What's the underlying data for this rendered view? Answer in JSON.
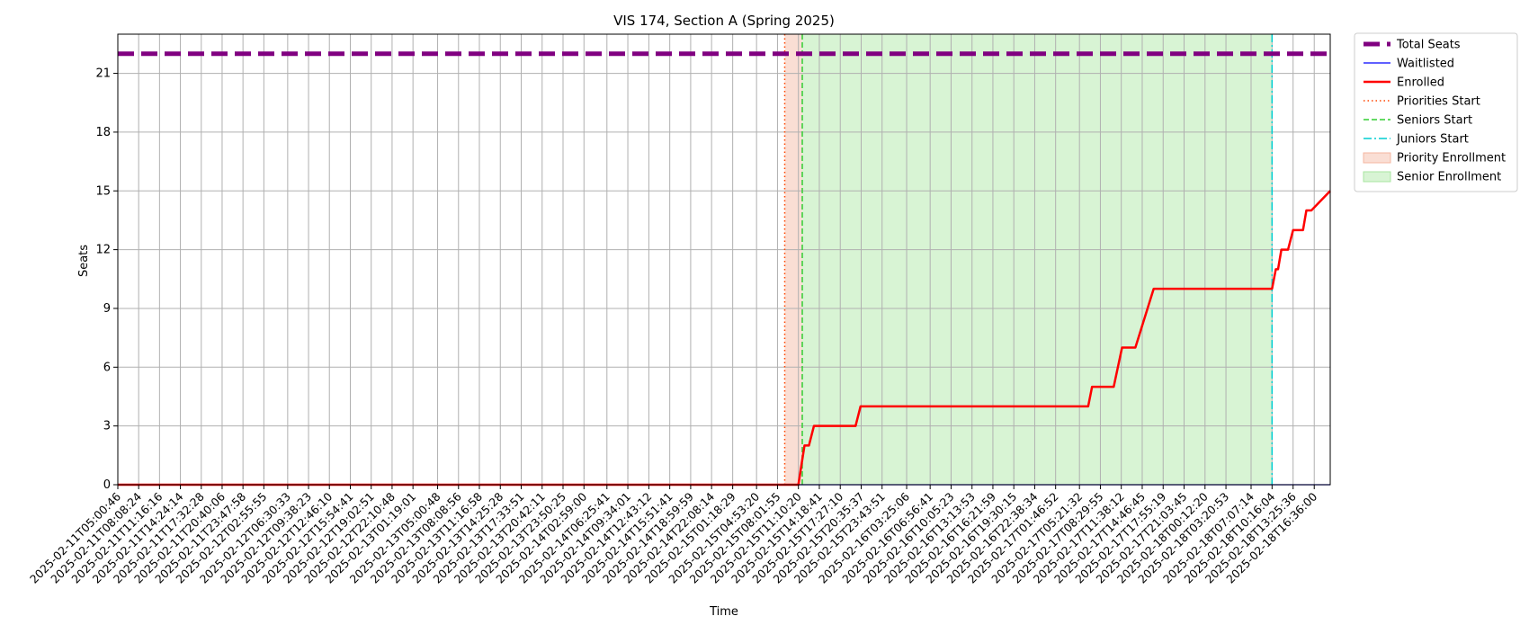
{
  "chart_data": {
    "type": "line",
    "title": "VIS 174, Section A (Spring 2025)",
    "xlabel": "Time",
    "ylabel": "Seats",
    "ylim": [
      0,
      23
    ],
    "yticks": [
      0,
      3,
      6,
      9,
      12,
      15,
      18,
      21
    ],
    "grid": true,
    "legend_position": "outside top-right",
    "x_ticks": [
      "2025-02-11T05:00:46",
      "2025-02-11T08:08:24",
      "2025-02-11T11:16:16",
      "2025-02-11T14:24:14",
      "2025-02-11T17:32:28",
      "2025-02-11T20:40:06",
      "2025-02-11T23:47:58",
      "2025-02-12T02:55:55",
      "2025-02-12T06:30:33",
      "2025-02-12T09:38:23",
      "2025-02-12T12:46:10",
      "2025-02-12T15:54:41",
      "2025-02-12T19:02:51",
      "2025-02-12T22:10:48",
      "2025-02-13T01:19:01",
      "2025-02-13T05:00:48",
      "2025-02-13T08:08:56",
      "2025-02-13T11:16:58",
      "2025-02-13T14:25:28",
      "2025-02-13T17:33:51",
      "2025-02-13T20:42:11",
      "2025-02-13T23:50:25",
      "2025-02-14T02:59:00",
      "2025-02-14T06:25:41",
      "2025-02-14T09:34:01",
      "2025-02-14T12:43:12",
      "2025-02-14T15:51:41",
      "2025-02-14T18:59:59",
      "2025-02-14T22:08:14",
      "2025-02-15T01:18:29",
      "2025-02-15T04:53:20",
      "2025-02-15T08:01:55",
      "2025-02-15T11:10:20",
      "2025-02-15T14:18:41",
      "2025-02-15T17:27:10",
      "2025-02-15T20:35:37",
      "2025-02-15T23:43:51",
      "2025-02-16T03:25:06",
      "2025-02-16T06:56:41",
      "2025-02-16T10:05:23",
      "2025-02-16T13:13:53",
      "2025-02-16T16:21:59",
      "2025-02-16T19:30:15",
      "2025-02-16T22:38:34",
      "2025-02-17T01:46:52",
      "2025-02-17T05:21:32",
      "2025-02-17T08:29:55",
      "2025-02-17T11:38:12",
      "2025-02-17T14:46:45",
      "2025-02-17T17:55:19",
      "2025-02-17T21:03:45",
      "2025-02-18T00:12:20",
      "2025-02-18T03:20:53",
      "2025-02-18T07:07:14",
      "2025-02-18T10:16:04",
      "2025-02-18T13:25:36",
      "2025-02-18T16:36:00"
    ],
    "x_range": [
      "2025-02-11T05:00:46",
      "2025-02-18T19:00:00"
    ],
    "series": [
      {
        "name": "Total Seats",
        "color": "#800080",
        "style": "dashed-thick",
        "points": [
          [
            "2025-02-11T05:00:46",
            22
          ],
          [
            "2025-02-18T19:00:00",
            22
          ]
        ]
      },
      {
        "name": "Waitlisted",
        "color": "#0000ff",
        "style": "solid-thin",
        "points": [
          [
            "2025-02-11T05:00:46",
            0
          ],
          [
            "2025-02-18T19:00:00",
            0
          ]
        ]
      },
      {
        "name": "Enrolled",
        "color": "#ff0000",
        "style": "solid-thick",
        "points": [
          [
            "2025-02-11T05:00:46",
            0
          ],
          [
            "2025-02-15T11:10:00",
            0
          ],
          [
            "2025-02-15T12:05:00",
            2
          ],
          [
            "2025-02-15T12:45:00",
            2
          ],
          [
            "2025-02-15T13:30:00",
            3
          ],
          [
            "2025-02-15T19:45:00",
            3
          ],
          [
            "2025-02-15T20:30:00",
            4
          ],
          [
            "2025-02-17T06:40:00",
            4
          ],
          [
            "2025-02-17T07:15:00",
            5
          ],
          [
            "2025-02-17T10:30:00",
            5
          ],
          [
            "2025-02-17T11:45:00",
            7
          ],
          [
            "2025-02-17T13:45:00",
            7
          ],
          [
            "2025-02-17T16:30:00",
            10
          ],
          [
            "2025-02-18T10:16:00",
            10
          ],
          [
            "2025-02-18T10:50:00",
            11
          ],
          [
            "2025-02-18T11:10:00",
            11
          ],
          [
            "2025-02-18T11:40:00",
            12
          ],
          [
            "2025-02-18T12:40:00",
            12
          ],
          [
            "2025-02-18T13:25:36",
            13
          ],
          [
            "2025-02-18T14:55:00",
            13
          ],
          [
            "2025-02-18T15:25:00",
            14
          ],
          [
            "2025-02-18T16:10:00",
            14
          ],
          [
            "2025-02-18T19:00:00",
            15
          ]
        ]
      }
    ],
    "markers": [
      {
        "name": "Priorities Start",
        "time": "2025-02-15T09:07:00",
        "color": "#ff4500",
        "style": "dotted"
      },
      {
        "name": "Seniors Start",
        "time": "2025-02-15T11:45:00",
        "color": "#32cd32",
        "style": "dashed"
      },
      {
        "name": "Juniors Start",
        "time": "2025-02-18T10:16:04",
        "color": "#00ced1",
        "style": "dashdot"
      }
    ],
    "regions": [
      {
        "name": "Priority Enrollment",
        "start": "2025-02-15T09:07:00",
        "end": "2025-02-15T11:45:00",
        "color": "#f4b6a0"
      },
      {
        "name": "Senior Enrollment",
        "start": "2025-02-15T11:45:00",
        "end": "2025-02-18T10:16:04",
        "color": "#a8e6a0"
      }
    ],
    "legend": [
      {
        "label": "Total Seats",
        "kind": "line",
        "color": "#800080",
        "style": "dashed-thick"
      },
      {
        "label": "Waitlisted",
        "kind": "line",
        "color": "#0000ff",
        "style": "solid-thin"
      },
      {
        "label": "Enrolled",
        "kind": "line",
        "color": "#ff0000",
        "style": "solid-thick"
      },
      {
        "label": "Priorities Start",
        "kind": "line",
        "color": "#ff4500",
        "style": "dotted"
      },
      {
        "label": "Seniors Start",
        "kind": "line",
        "color": "#32cd32",
        "style": "dashed"
      },
      {
        "label": "Juniors Start",
        "kind": "line",
        "color": "#00ced1",
        "style": "dashdot"
      },
      {
        "label": "Priority Enrollment",
        "kind": "patch",
        "color": "#f4b6a0"
      },
      {
        "label": "Senior Enrollment",
        "kind": "patch",
        "color": "#a8e6a0"
      }
    ]
  }
}
